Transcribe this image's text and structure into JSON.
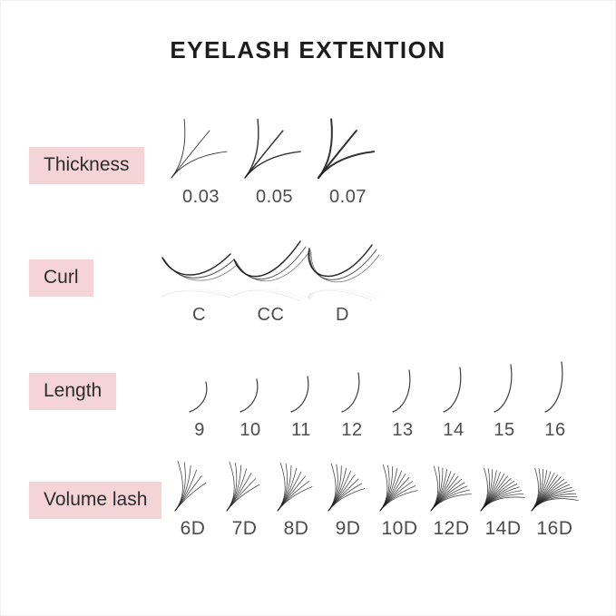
{
  "page": {
    "title": "EYELASH EXTENTION",
    "background": "#ffffff",
    "accent_pink": "#f5d4d8",
    "title_color": "#1d1d1d",
    "value_color": "#4c4c4c",
    "lash_color": "#1c1c1c"
  },
  "sections": {
    "thickness": {
      "label": "Thickness",
      "items": [
        "0.03",
        "0.05",
        "0.07"
      ]
    },
    "curl": {
      "label": "Curl",
      "items": [
        "C",
        "CC",
        "D"
      ]
    },
    "length": {
      "label": "Length",
      "items": [
        "9",
        "10",
        "11",
        "12",
        "13",
        "14",
        "15",
        "16"
      ]
    },
    "volume": {
      "label": "Volume lash",
      "items": [
        "6D",
        "7D",
        "8D",
        "9D",
        "10D",
        "12D",
        "14D",
        "16D"
      ]
    }
  }
}
